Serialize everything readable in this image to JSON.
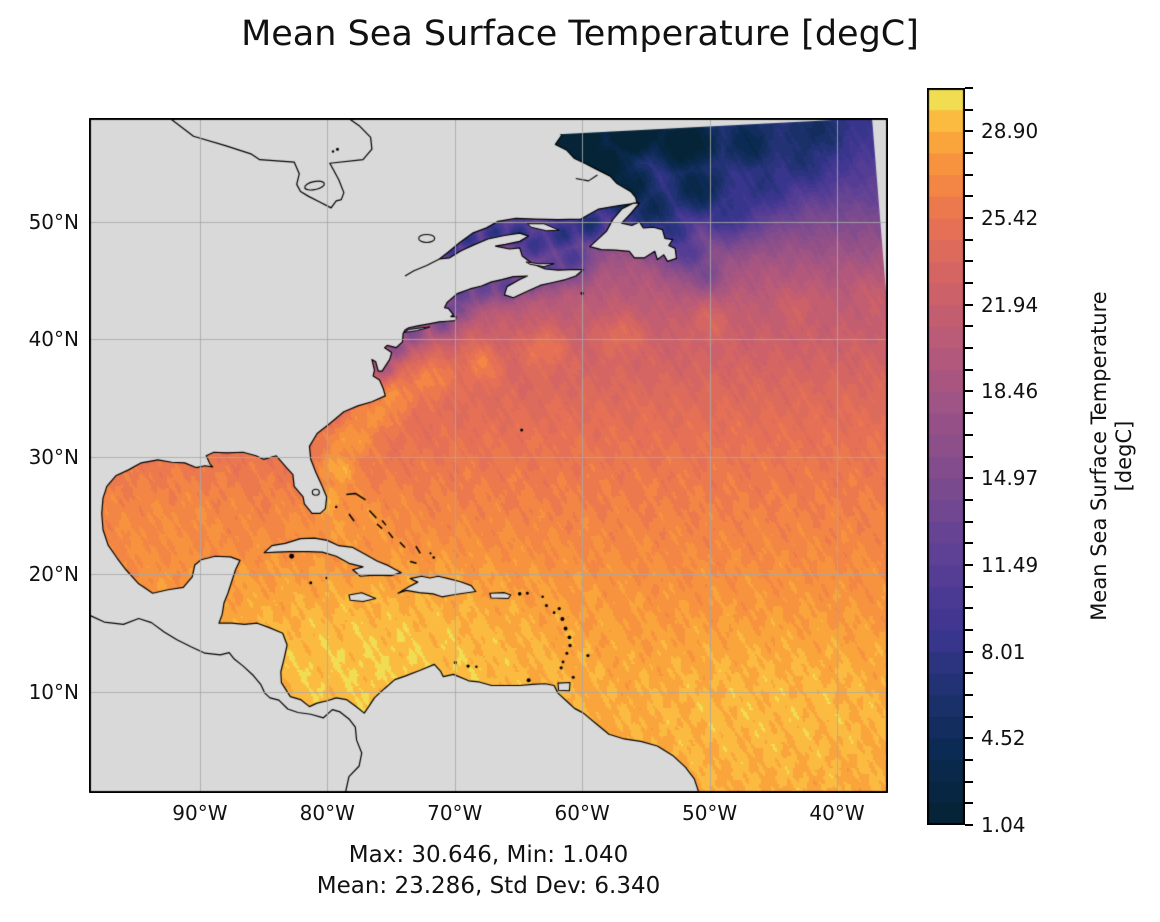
{
  "title": "Mean Sea Surface Temperature [degC]",
  "stats": {
    "line1": "Max: 30.646, Min: 1.040",
    "line2": "Mean: 23.286, Std Dev: 6.340",
    "max": 30.646,
    "min": 1.04,
    "mean": 23.286,
    "std_dev": 6.34
  },
  "colorbar": {
    "label_line1": "Mean Sea Surface Temperature",
    "label_line2": "[degC]",
    "vmin": 1.04,
    "vmax": 30.646,
    "n_bands": 34,
    "tick_labels_bottom_to_top": [
      "1.04",
      "4.52",
      "8.01",
      "11.49",
      "14.97",
      "18.46",
      "21.94",
      "25.42",
      "28.90"
    ],
    "tick_values_bottom_to_top": [
      1.04,
      4.52,
      8.01,
      11.49,
      14.97,
      18.46,
      21.94,
      25.42,
      28.9
    ]
  },
  "chart_data": {
    "type": "heatmap",
    "title": "Mean Sea Surface Temperature [degC]",
    "units": "degC",
    "region": "Western North Atlantic, Gulf of Mexico and Caribbean",
    "extent": {
      "lon_min": -98.7,
      "lon_max": -36.0,
      "lat_min": 1.4,
      "lat_max": 58.85
    },
    "x_ticks": [
      {
        "label": "90°W",
        "lon": -90
      },
      {
        "label": "80°W",
        "lon": -80
      },
      {
        "label": "70°W",
        "lon": -70
      },
      {
        "label": "60°W",
        "lon": -60
      },
      {
        "label": "50°W",
        "lon": -50
      },
      {
        "label": "40°W",
        "lon": -40
      }
    ],
    "y_ticks": [
      {
        "label": "50°N",
        "lat": 50
      },
      {
        "label": "40°N",
        "lat": 40
      },
      {
        "label": "30°N",
        "lat": 30
      },
      {
        "label": "20°N",
        "lat": 20
      },
      {
        "label": "10°N",
        "lat": 10
      }
    ],
    "value_range": [
      1.04,
      30.646
    ],
    "statistics": {
      "max": 30.646,
      "min": 1.04,
      "mean": 23.286,
      "std_dev": 6.34
    },
    "grid": true,
    "legend_position": "right-colorbar",
    "colormap": {
      "name": "thermal",
      "stops": [
        [
          0.0,
          "#042333"
        ],
        [
          0.1,
          "#0c2b53"
        ],
        [
          0.18,
          "#1e3270"
        ],
        [
          0.26,
          "#3b3690"
        ],
        [
          0.34,
          "#563e96"
        ],
        [
          0.42,
          "#6f4793"
        ],
        [
          0.5,
          "#884e8c"
        ],
        [
          0.58,
          "#a15584"
        ],
        [
          0.66,
          "#ba5b78"
        ],
        [
          0.74,
          "#d36466"
        ],
        [
          0.82,
          "#e97353"
        ],
        [
          0.88,
          "#f68a42"
        ],
        [
          0.93,
          "#fba63c"
        ],
        [
          0.97,
          "#fbc745"
        ],
        [
          1.0,
          "#e9f45f"
        ]
      ]
    },
    "colors": {
      "background": "#ffffff",
      "no_data_land": "#d9d9d9",
      "coastline": "#000000",
      "gridline": "#a8a8a8",
      "axes_border": "#000000",
      "text": "#111111"
    }
  }
}
